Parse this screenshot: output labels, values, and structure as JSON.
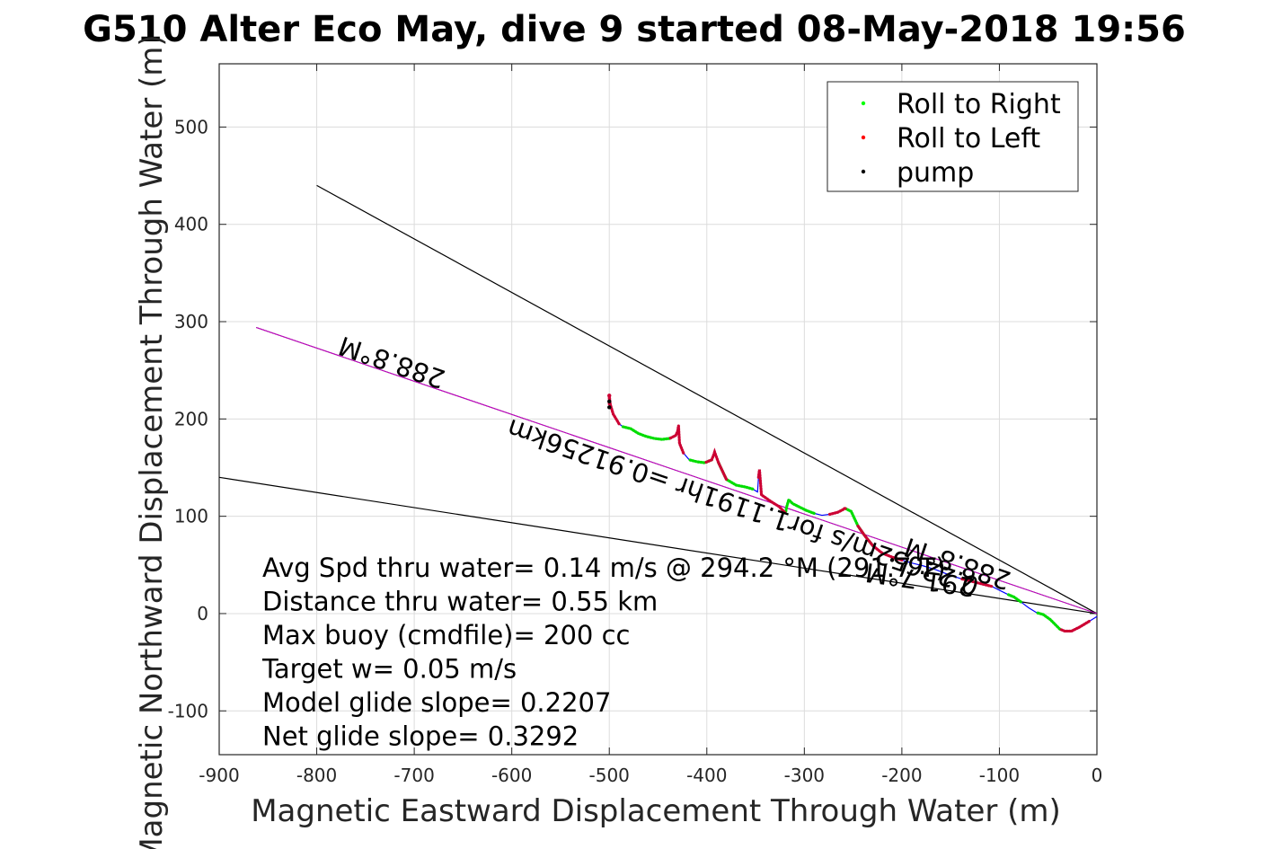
{
  "chart_data": {
    "type": "line",
    "title": "G510 Alter Eco May, dive 9 started 08-May-2018 19:56",
    "xlabel": "Magnetic Eastward Displacement Through Water (m)",
    "ylabel": "Magnetic Northward Displacement Through Water (m)",
    "xlim": [
      -900,
      0
    ],
    "ylim": [
      -145,
      565
    ],
    "xticks": [
      -900,
      -800,
      -700,
      -600,
      -500,
      -400,
      -300,
      -200,
      -100,
      0
    ],
    "yticks": [
      -100,
      0,
      100,
      200,
      300,
      400,
      500
    ],
    "grid": true,
    "legend": {
      "placement": "top-right",
      "entries": [
        {
          "label": "Roll to Right",
          "color": "#00ff00"
        },
        {
          "label": "Roll to Left",
          "color": "#ff0000"
        },
        {
          "label": "pump",
          "color": "#000000"
        }
      ]
    },
    "colors": {
      "track": "#0000ff",
      "roll_right": "#00dd00",
      "roll_left": "#cc0033",
      "pump": "#000000",
      "heading_line": "#cc00cc",
      "cone_line": "#000000"
    },
    "lines": {
      "cone_upper": {
        "x": [
          0,
          -800
        ],
        "y": [
          0,
          440
        ]
      },
      "cone_lower": {
        "x": [
          0,
          -900
        ],
        "y": [
          0,
          140
        ]
      },
      "heading": {
        "x": [
          0,
          -862
        ],
        "y": [
          0,
          294
        ]
      }
    },
    "track": {
      "x": [
        0,
        -8,
        -18,
        -26,
        -33,
        -38,
        -42,
        -48,
        -55,
        -62,
        -70,
        -78,
        -85,
        -92,
        -100,
        -108,
        -116,
        -124,
        -132,
        -140,
        -152,
        -165,
        -178,
        -190,
        -200,
        -210,
        -220,
        -230,
        -238,
        -245,
        -252,
        -256,
        -258,
        -259,
        -260,
        -266,
        -274,
        -282,
        -290,
        -298,
        -306,
        -312,
        -316,
        -318,
        -319,
        -320,
        -326,
        -334,
        -344,
        -346,
        -347,
        -348,
        -353,
        -360,
        -370,
        -380,
        -388,
        -392,
        -393,
        -395,
        -402,
        -410,
        -418,
        -424,
        -428,
        -429,
        -430,
        -432,
        -438,
        -446,
        -454,
        -462,
        -470,
        -478,
        -486,
        -490,
        -496,
        -499,
        -500,
        -500
      ],
      "y": [
        -3,
        -8,
        -14,
        -18,
        -18,
        -16,
        -12,
        -6,
        -1,
        1,
        6,
        12,
        17,
        20,
        24,
        28,
        30,
        32,
        34,
        36,
        40,
        45,
        49,
        52,
        55,
        58,
        62,
        70,
        80,
        90,
        105,
        107,
        108,
        108,
        107,
        104,
        102,
        101,
        103,
        106,
        110,
        113,
        117,
        110,
        105,
        104,
        110,
        115,
        122,
        148,
        140,
        125,
        128,
        130,
        132,
        138,
        155,
        166,
        163,
        158,
        155,
        156,
        158,
        165,
        175,
        193,
        187,
        183,
        180,
        179,
        180,
        182,
        185,
        190,
        192,
        195,
        205,
        215,
        224,
        215
      ],
      "roll_right_segments": [
        [
          5,
          9
        ],
        [
          11,
          13
        ],
        [
          27,
          33
        ],
        [
          38,
          44
        ],
        [
          52,
          56
        ],
        [
          59,
          62
        ],
        [
          68,
          74
        ]
      ],
      "roll_left_segments": [
        [
          1,
          5
        ],
        [
          15,
          19
        ],
        [
          24,
          29
        ],
        [
          32,
          36
        ],
        [
          45,
          50
        ],
        [
          55,
          60
        ],
        [
          63,
          68
        ],
        [
          75,
          79
        ]
      ],
      "pump_points": [
        [
          -500,
          212
        ],
        [
          -500,
          218
        ],
        [
          -196,
          52
        ],
        [
          -210,
          55
        ]
      ]
    },
    "annotations": [
      {
        "text": "288.8°M",
        "x": -720,
        "y": 267,
        "rotate": 198.8
      },
      {
        "text": "0.22652m/s for1.1191hr =0.91256km",
        "x": -360,
        "y": 118,
        "rotate": 198.8
      },
      {
        "text": "288.8°M",
        "x": -140,
        "y": 60,
        "rotate": 198.8
      },
      {
        "text": "291.7°M",
        "x": -180,
        "y": 44,
        "rotate": 188
      }
    ],
    "stats": [
      "Avg Spd thru water=  0.14 m/s @ 294.2 °M (291.7 T)",
      "Distance thru water=  0.55 km",
      "Max buoy (cmdfile)= 200 cc",
      "Target w= 0.05 m/s",
      "Model glide slope= 0.2207",
      "Net glide slope= 0.3292"
    ]
  }
}
